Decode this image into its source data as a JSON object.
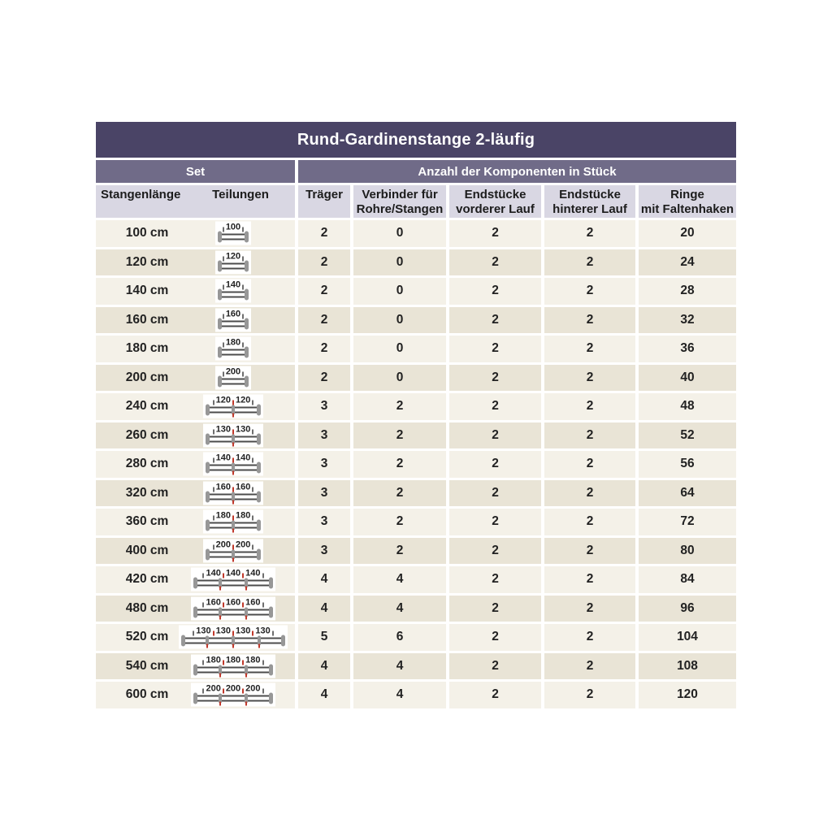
{
  "chart_data": {
    "type": "table",
    "title": "Rund-Gardinenstange 2-läufig",
    "group_headers": {
      "set": "Set",
      "components": "Anzahl der Komponenten in Stück"
    },
    "columns": {
      "stangenlaenge": "Stangenlänge",
      "teilungen": "Teilungen",
      "traeger": "Träger",
      "verbinder": [
        "Verbinder für",
        "Rohre/Stangen"
      ],
      "endstuecke_vorderer": [
        "Endstücke",
        "vorderer Lauf"
      ],
      "endstuecke_hinterer": [
        "Endstücke",
        "hinterer Lauf"
      ],
      "ringe": [
        "Ringe",
        "mit Faltenhaken"
      ]
    },
    "rows": [
      {
        "stangenlaenge": "100 cm",
        "teilungen": [
          100
        ],
        "traeger": 2,
        "verbinder": 0,
        "endstuecke_vorderer_lauf": 2,
        "endstuecke_hinterer_lauf": 2,
        "ringe_mit_faltenhaken": 20
      },
      {
        "stangenlaenge": "120 cm",
        "teilungen": [
          120
        ],
        "traeger": 2,
        "verbinder": 0,
        "endstuecke_vorderer_lauf": 2,
        "endstuecke_hinterer_lauf": 2,
        "ringe_mit_faltenhaken": 24
      },
      {
        "stangenlaenge": "140 cm",
        "teilungen": [
          140
        ],
        "traeger": 2,
        "verbinder": 0,
        "endstuecke_vorderer_lauf": 2,
        "endstuecke_hinterer_lauf": 2,
        "ringe_mit_faltenhaken": 28
      },
      {
        "stangenlaenge": "160 cm",
        "teilungen": [
          160
        ],
        "traeger": 2,
        "verbinder": 0,
        "endstuecke_vorderer_lauf": 2,
        "endstuecke_hinterer_lauf": 2,
        "ringe_mit_faltenhaken": 32
      },
      {
        "stangenlaenge": "180 cm",
        "teilungen": [
          180
        ],
        "traeger": 2,
        "verbinder": 0,
        "endstuecke_vorderer_lauf": 2,
        "endstuecke_hinterer_lauf": 2,
        "ringe_mit_faltenhaken": 36
      },
      {
        "stangenlaenge": "200 cm",
        "teilungen": [
          200
        ],
        "traeger": 2,
        "verbinder": 0,
        "endstuecke_vorderer_lauf": 2,
        "endstuecke_hinterer_lauf": 2,
        "ringe_mit_faltenhaken": 40
      },
      {
        "stangenlaenge": "240 cm",
        "teilungen": [
          120,
          120
        ],
        "traeger": 3,
        "verbinder": 2,
        "endstuecke_vorderer_lauf": 2,
        "endstuecke_hinterer_lauf": 2,
        "ringe_mit_faltenhaken": 48
      },
      {
        "stangenlaenge": "260 cm",
        "teilungen": [
          130,
          130
        ],
        "traeger": 3,
        "verbinder": 2,
        "endstuecke_vorderer_lauf": 2,
        "endstuecke_hinterer_lauf": 2,
        "ringe_mit_faltenhaken": 52
      },
      {
        "stangenlaenge": "280 cm",
        "teilungen": [
          140,
          140
        ],
        "traeger": 3,
        "verbinder": 2,
        "endstuecke_vorderer_lauf": 2,
        "endstuecke_hinterer_lauf": 2,
        "ringe_mit_faltenhaken": 56
      },
      {
        "stangenlaenge": "320 cm",
        "teilungen": [
          160,
          160
        ],
        "traeger": 3,
        "verbinder": 2,
        "endstuecke_vorderer_lauf": 2,
        "endstuecke_hinterer_lauf": 2,
        "ringe_mit_faltenhaken": 64
      },
      {
        "stangenlaenge": "360 cm",
        "teilungen": [
          180,
          180
        ],
        "traeger": 3,
        "verbinder": 2,
        "endstuecke_vorderer_lauf": 2,
        "endstuecke_hinterer_lauf": 2,
        "ringe_mit_faltenhaken": 72
      },
      {
        "stangenlaenge": "400 cm",
        "teilungen": [
          200,
          200
        ],
        "traeger": 3,
        "verbinder": 2,
        "endstuecke_vorderer_lauf": 2,
        "endstuecke_hinterer_lauf": 2,
        "ringe_mit_faltenhaken": 80
      },
      {
        "stangenlaenge": "420 cm",
        "teilungen": [
          140,
          140,
          140
        ],
        "traeger": 4,
        "verbinder": 4,
        "endstuecke_vorderer_lauf": 2,
        "endstuecke_hinterer_lauf": 2,
        "ringe_mit_faltenhaken": 84
      },
      {
        "stangenlaenge": "480 cm",
        "teilungen": [
          160,
          160,
          160
        ],
        "traeger": 4,
        "verbinder": 4,
        "endstuecke_vorderer_lauf": 2,
        "endstuecke_hinterer_lauf": 2,
        "ringe_mit_faltenhaken": 96
      },
      {
        "stangenlaenge": "520 cm",
        "teilungen": [
          130,
          130,
          130,
          130
        ],
        "traeger": 5,
        "verbinder": 6,
        "endstuecke_vorderer_lauf": 2,
        "endstuecke_hinterer_lauf": 2,
        "ringe_mit_faltenhaken": 104
      },
      {
        "stangenlaenge": "540 cm",
        "teilungen": [
          180,
          180,
          180
        ],
        "traeger": 4,
        "verbinder": 4,
        "endstuecke_vorderer_lauf": 2,
        "endstuecke_hinterer_lauf": 2,
        "ringe_mit_faltenhaken": 108
      },
      {
        "stangenlaenge": "600 cm",
        "teilungen": [
          200,
          200,
          200
        ],
        "traeger": 4,
        "verbinder": 4,
        "endstuecke_vorderer_lauf": 2,
        "endstuecke_hinterer_lauf": 2,
        "ringe_mit_faltenhaken": 120
      }
    ]
  },
  "colors": {
    "title_bar": "#4a4466",
    "group_bar": "#706b88",
    "header_bg": "#d9d7e3",
    "row_light": "#f4f1e8",
    "row_dark": "#e9e4d6",
    "text": "#222222",
    "accent_red": "#c0392b",
    "rod_gray": "#979797",
    "rod_dark": "#4c4c4c"
  }
}
